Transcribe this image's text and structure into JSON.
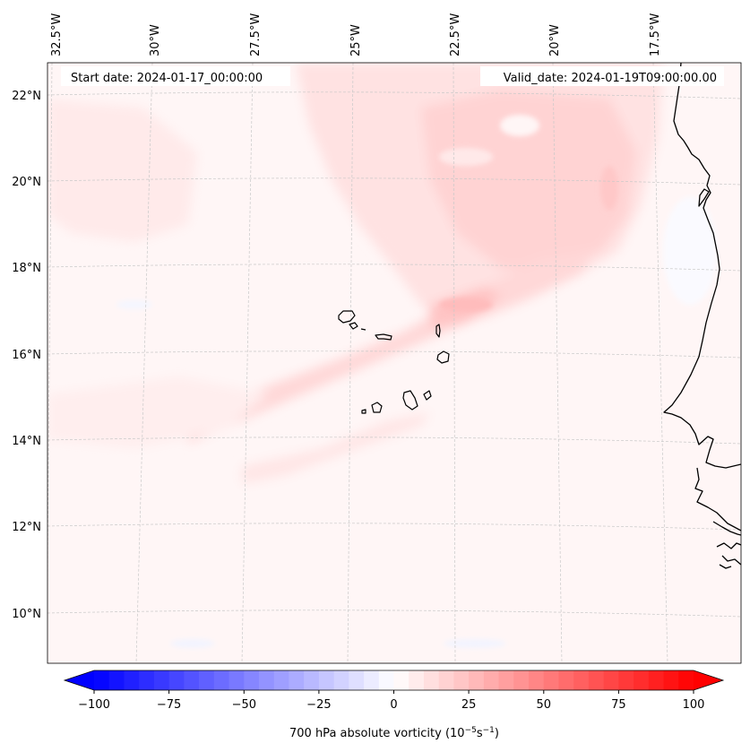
{
  "header": {
    "start_label": "Start date: 2024-01-17_00:00:00",
    "valid_label": "Valid_date: 2024-01-19T09:00:00.00"
  },
  "lon_labels": [
    "32.5°W",
    "30°W",
    "27.5°W",
    "25°W",
    "22.5°W",
    "20°W",
    "17.5°W"
  ],
  "lat_labels": [
    "22°N",
    "20°N",
    "18°N",
    "16°N",
    "14°N",
    "12°N",
    "10°N"
  ],
  "colorbar": {
    "ticks": [
      "−100",
      "−75",
      "−50",
      "−25",
      "0",
      "25",
      "50",
      "75",
      "100"
    ],
    "label_prefix": "700 hPa absolute vorticity (10",
    "label_exp1": "−5",
    "label_mid": "s",
    "label_exp2": "−1",
    "label_suffix": ")"
  },
  "colors": {
    "negative_max": "#0000ff",
    "zero": "#ffffff",
    "positive_max": "#ff0000",
    "coastline": "#000000",
    "gridline": "#bbbbbb"
  }
}
